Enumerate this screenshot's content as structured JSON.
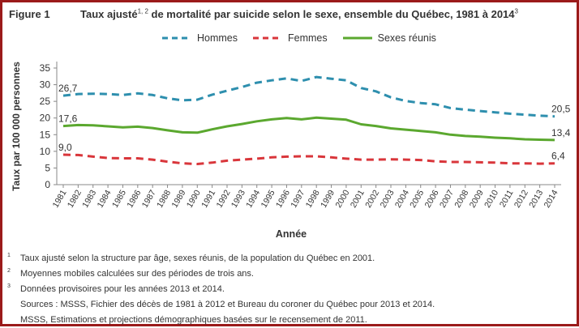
{
  "figure_label": "Figure 1",
  "title_main": "Taux ajusté",
  "title_sup": "1, 2",
  "title_rest": " de mortalité par suicide selon le sexe, ensemble du Québec, 1981 à 2014",
  "title_sup2": "3",
  "notes": [
    {
      "mark": "1",
      "text": "Taux ajusté selon la structure par âge, sexes réunis, de la population du Québec en 2001."
    },
    {
      "mark": "2",
      "text": "Moyennes mobiles calculées sur des périodes de trois ans."
    },
    {
      "mark": "3",
      "text": "Données provisoires pour les années 2013 et 2014."
    },
    {
      "mark": "",
      "text": "Sources : MSSS, Fichier des décès de 1981 à 2012 et Bureau du coroner du Québec pour 2013 et 2014."
    },
    {
      "mark": "",
      "text": "MSSS, Estimations et projections démographiques basées sur le recensement de 2011."
    }
  ],
  "colors": {
    "hommes": "#2e8fae",
    "femmes": "#d9363b",
    "sexes_reunis": "#5ba82f",
    "frame": "#9b1b1b"
  },
  "chart_data": {
    "type": "line",
    "title": "Taux ajusté de mortalité par suicide selon le sexe, ensemble du Québec, 1981 à 2014",
    "xlabel": "Année",
    "ylabel": "Taux par 100 000 personnes",
    "ylim": [
      0,
      35
    ],
    "yticks": [
      0,
      5,
      10,
      15,
      20,
      25,
      30,
      35
    ],
    "categories": [
      "1981",
      "1982",
      "1983",
      "1984",
      "1985",
      "1986",
      "1987",
      "1988",
      "1989",
      "1990",
      "1991",
      "1992",
      "1993",
      "1994",
      "1995",
      "1996",
      "1997",
      "1998",
      "1999",
      "2000",
      "2001",
      "2002",
      "2003",
      "2004",
      "2005",
      "2006",
      "2007",
      "2008",
      "2009",
      "2010",
      "2011",
      "2012",
      "2013",
      "2014"
    ],
    "legend_position": "top",
    "series": [
      {
        "name": "Hommes",
        "style": "dashed",
        "color": "#2e8fae",
        "values": [
          26.7,
          27.2,
          27.3,
          27.2,
          26.9,
          27.4,
          26.9,
          25.9,
          25.3,
          25.5,
          27.0,
          28.2,
          29.3,
          30.6,
          31.3,
          31.9,
          31.1,
          32.3,
          31.8,
          31.3,
          29.0,
          28.0,
          26.2,
          25.1,
          24.5,
          24.1,
          23.0,
          22.5,
          22.1,
          21.7,
          21.3,
          21.0,
          20.7,
          20.5
        ],
        "start_label": "26,7",
        "end_label": "20,5"
      },
      {
        "name": "Femmes",
        "style": "dashed",
        "color": "#d9363b",
        "values": [
          9.0,
          8.9,
          8.4,
          8.0,
          7.9,
          7.9,
          7.5,
          6.9,
          6.4,
          6.2,
          6.6,
          7.2,
          7.5,
          7.8,
          8.2,
          8.4,
          8.5,
          8.5,
          8.2,
          7.8,
          7.5,
          7.5,
          7.6,
          7.5,
          7.4,
          7.0,
          6.8,
          6.8,
          6.7,
          6.6,
          6.4,
          6.4,
          6.3,
          6.4
        ],
        "start_label": "9,0",
        "end_label": "6,4"
      },
      {
        "name": "Sexes réunis",
        "style": "solid",
        "color": "#5ba82f",
        "values": [
          17.6,
          17.9,
          17.8,
          17.5,
          17.2,
          17.4,
          17.0,
          16.3,
          15.7,
          15.6,
          16.6,
          17.5,
          18.2,
          19.0,
          19.6,
          20.0,
          19.6,
          20.1,
          19.8,
          19.5,
          18.1,
          17.6,
          16.9,
          16.5,
          16.1,
          15.7,
          15.0,
          14.6,
          14.4,
          14.1,
          13.9,
          13.6,
          13.5,
          13.4
        ],
        "start_label": "17,6",
        "end_label": "13,4"
      }
    ]
  }
}
